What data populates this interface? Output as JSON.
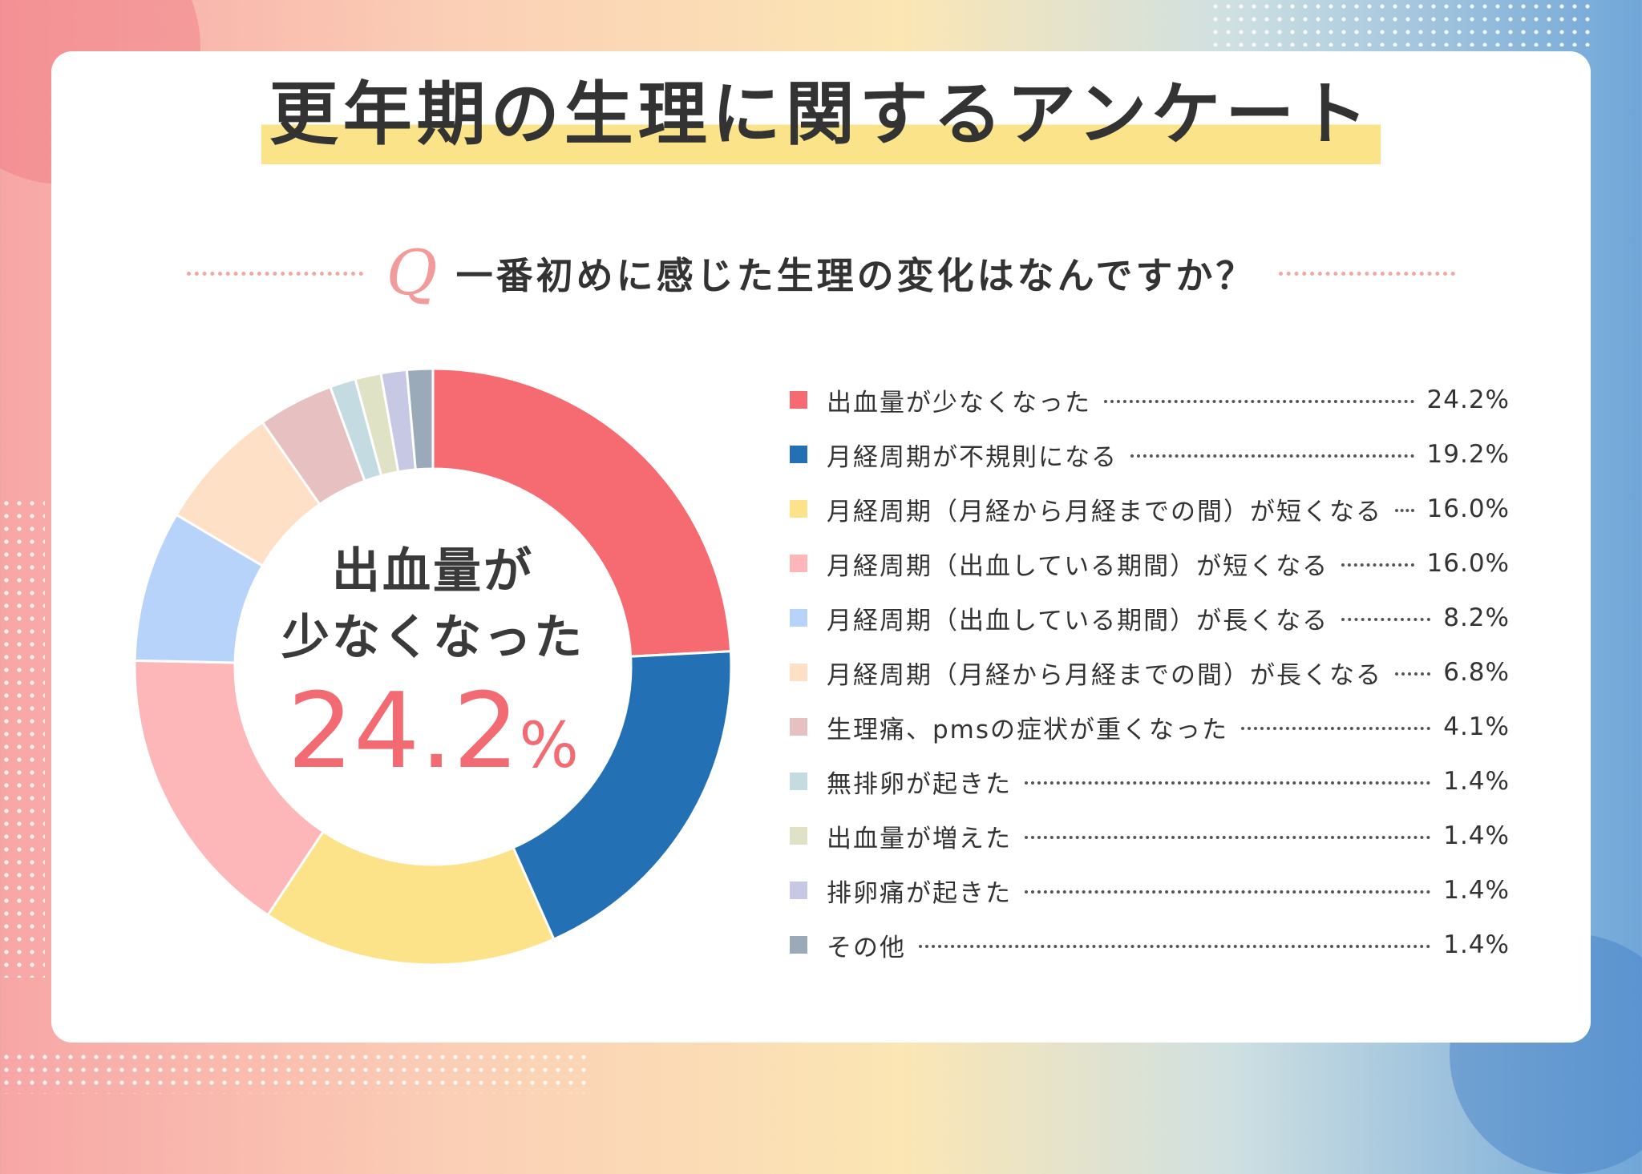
{
  "title": "更年期の生理に関するアンケート",
  "question": {
    "mark": "Q",
    "text": "一番初めに感じた生理の変化はなんですか？"
  },
  "center": {
    "label_line1": "出血量が",
    "label_line2": "少なくなった",
    "value_number": "24.2",
    "value_unit": "%"
  },
  "chart_data": {
    "type": "pie",
    "donut": true,
    "start_angle_deg": 0,
    "direction": "clockwise",
    "unit": "%",
    "slices": [
      {
        "label": "出血量が少なくなった",
        "value": 24.2,
        "display": "24.2%",
        "color": "#f56b71"
      },
      {
        "label": "月経周期が不規則になる",
        "value": 19.2,
        "display": "19.2%",
        "color": "#2470b5"
      },
      {
        "label": "月経周期（月経から月経までの間）が短くなる",
        "value": 16.0,
        "display": "16.0%",
        "color": "#fce38a"
      },
      {
        "label": "月経周期（出血している期間）が短くなる",
        "value": 16.0,
        "display": "16.0%",
        "color": "#fdb7b9"
      },
      {
        "label": "月経周期（出血している期間）が長くなる",
        "value": 8.2,
        "display": "8.2%",
        "color": "#b8d3fa"
      },
      {
        "label": "月経周期（月経から月経までの間）が長くなる",
        "value": 6.8,
        "display": "6.8%",
        "color": "#fde0c6"
      },
      {
        "label": "生理痛、pmsの症状が重くなった",
        "value": 4.1,
        "display": "4.1%",
        "color": "#e7c1c2"
      },
      {
        "label": "無排卵が起きた",
        "value": 1.4,
        "display": "1.4%",
        "color": "#c4dce1"
      },
      {
        "label": "出血量が増えた",
        "value": 1.4,
        "display": "1.4%",
        "color": "#e0e2c5"
      },
      {
        "label": "排卵痛が起きた",
        "value": 1.4,
        "display": "1.4%",
        "color": "#c7c8e3"
      },
      {
        "label": "その他",
        "value": 1.4,
        "display": "1.4%",
        "color": "#9aaab9"
      }
    ]
  }
}
